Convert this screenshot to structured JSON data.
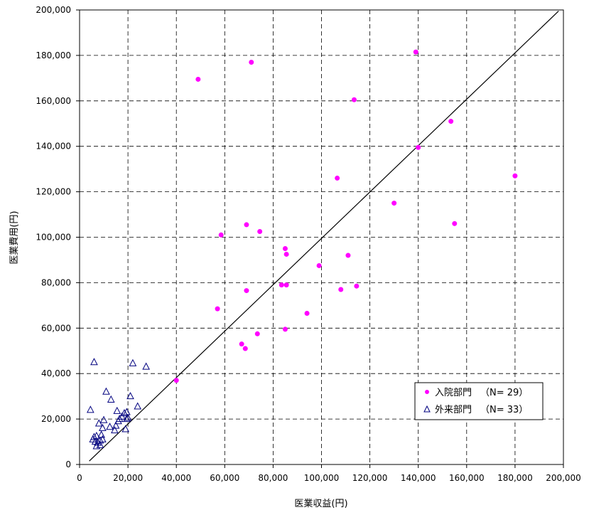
{
  "chart_data": {
    "type": "scatter",
    "xlabel": "医業収益(円)",
    "ylabel": "医業費用(円)",
    "xlim": [
      0,
      200000
    ],
    "ylim": [
      0,
      200000
    ],
    "xticks": [
      0,
      20000,
      40000,
      60000,
      80000,
      100000,
      120000,
      140000,
      160000,
      180000,
      200000
    ],
    "yticks": [
      0,
      20000,
      40000,
      60000,
      80000,
      100000,
      120000,
      140000,
      160000,
      180000,
      200000
    ],
    "xtick_labels": [
      "0",
      "20,000",
      "40,000",
      "60,000",
      "80,000",
      "100,000",
      "120,000",
      "140,000",
      "160,000",
      "180,000",
      "200,000"
    ],
    "ytick_labels": [
      "0",
      "20,000",
      "40,000",
      "60,000",
      "80,000",
      "100,000",
      "120,000",
      "140,000",
      "160,000",
      "180,000",
      "200,000"
    ],
    "grid": true,
    "grid_style": "dashed",
    "legend_position": "lower-right",
    "reference_line": {
      "type": "diagonal",
      "from": [
        4000,
        1500
      ],
      "to": [
        198000,
        199500
      ],
      "color": "#000000"
    },
    "series": [
      {
        "name": "入院部門",
        "count_label": "（N= 29）",
        "marker": "circle",
        "color": "#ff00ff",
        "points": [
          [
            40000,
            37000
          ],
          [
            49000,
            169500
          ],
          [
            57000,
            68500
          ],
          [
            58500,
            101000
          ],
          [
            67000,
            53000
          ],
          [
            68500,
            51000
          ],
          [
            69000,
            105500
          ],
          [
            69000,
            76500
          ],
          [
            71000,
            177000
          ],
          [
            73500,
            57500
          ],
          [
            74500,
            102500
          ],
          [
            83500,
            79000
          ],
          [
            85000,
            95000
          ],
          [
            85000,
            59500
          ],
          [
            85500,
            92500
          ],
          [
            85500,
            79000
          ],
          [
            94000,
            66500
          ],
          [
            99000,
            87500
          ],
          [
            106500,
            126000
          ],
          [
            108000,
            77000
          ],
          [
            111000,
            92000
          ],
          [
            113500,
            160500
          ],
          [
            114500,
            78500
          ],
          [
            130000,
            115000
          ],
          [
            139000,
            181500
          ],
          [
            140000,
            139500
          ],
          [
            153500,
            151000
          ],
          [
            155000,
            106000
          ],
          [
            180000,
            127000
          ]
        ]
      },
      {
        "name": "外来部門",
        "count_label": "（N= 33）",
        "marker": "triangle",
        "color": "#00007f",
        "points": [
          [
            4500,
            24000
          ],
          [
            5500,
            11000
          ],
          [
            6000,
            45000
          ],
          [
            6000,
            12000
          ],
          [
            6500,
            10000
          ],
          [
            7000,
            8000
          ],
          [
            7000,
            12500
          ],
          [
            7500,
            9500
          ],
          [
            8000,
            18000
          ],
          [
            8500,
            10500
          ],
          [
            9000,
            13000
          ],
          [
            9500,
            11000
          ],
          [
            9500,
            16000
          ],
          [
            10000,
            19500
          ],
          [
            11000,
            32000
          ],
          [
            13000,
            28500
          ],
          [
            14500,
            15000
          ],
          [
            15000,
            17000
          ],
          [
            15500,
            23500
          ],
          [
            16500,
            20000
          ],
          [
            17500,
            21000
          ],
          [
            18500,
            22500
          ],
          [
            19000,
            15500
          ],
          [
            19500,
            23000
          ],
          [
            20000,
            20500
          ],
          [
            21000,
            30000
          ],
          [
            22000,
            44500
          ],
          [
            24000,
            25500
          ],
          [
            27500,
            43000
          ],
          [
            8500,
            8500
          ],
          [
            12500,
            16500
          ],
          [
            16000,
            19000
          ],
          [
            19500,
            20000
          ]
        ]
      }
    ]
  }
}
